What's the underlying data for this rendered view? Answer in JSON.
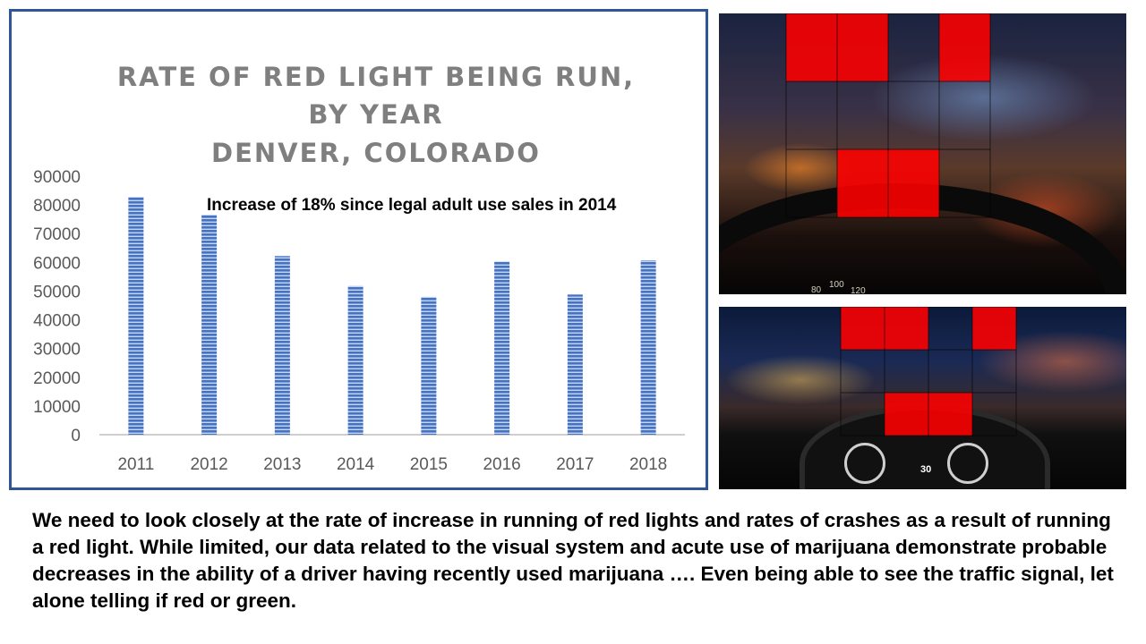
{
  "chart_data": {
    "type": "bar",
    "title": [
      "RATE OF RED LIGHT BEING RUN,",
      "BY YEAR",
      "DENVER, COLORADO"
    ],
    "categories": [
      "2011",
      "2012",
      "2013",
      "2014",
      "2015",
      "2016",
      "2017",
      "2018"
    ],
    "values": [
      82800,
      76600,
      62200,
      51800,
      48000,
      60300,
      48800,
      60700
    ],
    "y_ticks": [
      "90000",
      "80000",
      "70000",
      "60000",
      "50000",
      "40000",
      "30000",
      "20000",
      "10000",
      "0"
    ],
    "ylim": [
      0,
      90000
    ],
    "annotation": "Increase of 18% since legal adult use sales in 2014",
    "grid": false,
    "bar_color": "#4472c4"
  },
  "caption": "We need to look closely at the rate of increase in running of red lights and rates of crashes as a result of running a red light.  While limited, our data related to the visual system and acute use of marijuana demonstrate probable decreases in the ability of a driver having recently used marijuana …. Even being able to see the traffic signal, let alone telling if red or green.",
  "photos": {
    "top_speedometer": [
      "80",
      "100",
      "120"
    ],
    "bottom_speed_readout": "30"
  },
  "overlay_color": "#ff0000"
}
